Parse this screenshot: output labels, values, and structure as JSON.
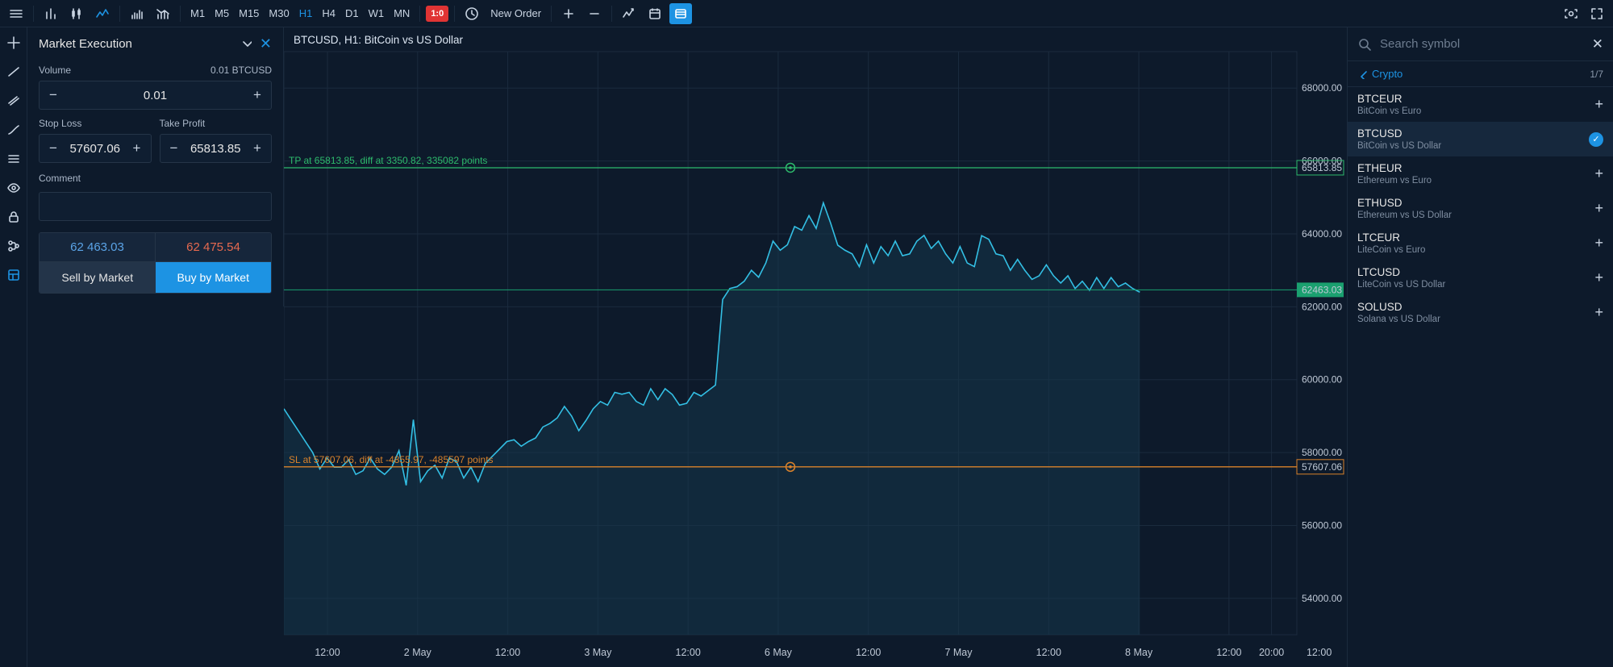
{
  "topbar": {
    "timeframes": [
      "M1",
      "M5",
      "M15",
      "M30",
      "H1",
      "H4",
      "D1",
      "W1",
      "MN"
    ],
    "active_tf": "H1",
    "badge": "1:0",
    "new_order": "New Order"
  },
  "order": {
    "type": "Market Execution",
    "volume_label": "Volume",
    "volume_hint": "0.01 BTCUSD",
    "volume_value": "0.01",
    "sl_label": "Stop Loss",
    "sl_value": "57607.06",
    "tp_label": "Take Profit",
    "tp_value": "65813.85",
    "comment_label": "Comment",
    "bid": "62 463.03",
    "ask": "62 475.54",
    "sell_btn": "Sell by Market",
    "buy_btn": "Buy by Market"
  },
  "chart": {
    "title": "BTCUSD, H1: BitCoin vs US Dollar",
    "tp_line_text": "TP at 65813.85, diff at 3350.82, 335082 points",
    "sl_line_text": "SL at 57607.06, diff at -4855.97, -485597 points",
    "tp_price_label": "65813.85",
    "sl_price_label": "57607.06",
    "cur_price_label": "62463.03",
    "y_axis": {
      "min": 53000,
      "max": 69000,
      "ticks": [
        54000,
        56000,
        58000,
        60000,
        62000,
        64000,
        66000,
        68000
      ],
      "tick_labels": [
        "54000.00",
        "56000.00",
        "58000.00",
        "60000.00",
        "62000.00",
        "64000.00",
        "66000.00",
        "68000.00"
      ]
    },
    "x_axis": {
      "labels": [
        "12:00",
        "2 May",
        "12:00",
        "3 May",
        "12:00",
        "6 May",
        "12:00",
        "7 May",
        "12:00",
        "8 May",
        "12:00",
        "20:00",
        "12:00"
      ],
      "positions": [
        0.043,
        0.132,
        0.221,
        0.31,
        0.399,
        0.488,
        0.577,
        0.666,
        0.755,
        0.844,
        0.933,
        0.975,
        1.022
      ]
    },
    "tp_y": 65813.85,
    "sl_y": 57607.06,
    "cur_y": 62463.03,
    "colors": {
      "background": "#0d1a2b",
      "grid": "#1b2b3e",
      "line": "#33bfe4",
      "area_fill": "#15364a",
      "tp": "#2dbb6c",
      "sl": "#d9822b",
      "current": "#1aa06f",
      "axis_text": "#bfc9d6"
    },
    "series": [
      59200,
      58900,
      58600,
      58300,
      58000,
      57550,
      57850,
      57600,
      57600,
      57800,
      57400,
      57500,
      57850,
      57550,
      57400,
      57600,
      58050,
      57100,
      58900,
      57200,
      57500,
      57650,
      57300,
      57850,
      57750,
      57300,
      57600,
      57200,
      57700,
      57900,
      58100,
      58300,
      58350,
      58172,
      58300,
      58400,
      58700,
      58800,
      58950,
      59265,
      59000,
      58600,
      58878,
      59200,
      59400,
      59300,
      59650,
      59600,
      59650,
      59400,
      59300,
      59750,
      59450,
      59750,
      59591,
      59300,
      59350,
      59650,
      59550,
      59700,
      59850,
      62200,
      62500,
      62550,
      62700,
      63000,
      62809,
      63200,
      63800,
      63550,
      63700,
      64200,
      64100,
      64500,
      64150,
      64850,
      64300,
      63690,
      63550,
      63450,
      63100,
      63700,
      63200,
      63650,
      63400,
      63800,
      63400,
      63450,
      63800,
      63957,
      63600,
      63800,
      63450,
      63200,
      63650,
      63200,
      63100,
      63950,
      63850,
      63450,
      63400,
      63000,
      63300,
      63000,
      62750,
      62850,
      63150,
      62850,
      62650,
      62850,
      62500,
      62700,
      62450,
      62800,
      62500,
      62800,
      62550,
      62650,
      62500,
      62400
    ]
  },
  "symbols": {
    "search_ph": "Search symbol",
    "crumb": "Crypto",
    "count": "1/7",
    "items": [
      {
        "sym": "BTCEUR",
        "desc": "BitCoin vs Euro",
        "selected": false
      },
      {
        "sym": "BTCUSD",
        "desc": "BitCoin vs US Dollar",
        "selected": true
      },
      {
        "sym": "ETHEUR",
        "desc": "Ethereum vs Euro",
        "selected": false
      },
      {
        "sym": "ETHUSD",
        "desc": "Ethereum vs US Dollar",
        "selected": false
      },
      {
        "sym": "LTCEUR",
        "desc": "LiteCoin vs Euro",
        "selected": false
      },
      {
        "sym": "LTCUSD",
        "desc": "LiteCoin vs US Dollar",
        "selected": false
      },
      {
        "sym": "SOLUSD",
        "desc": "Solana vs US Dollar",
        "selected": false
      }
    ]
  }
}
